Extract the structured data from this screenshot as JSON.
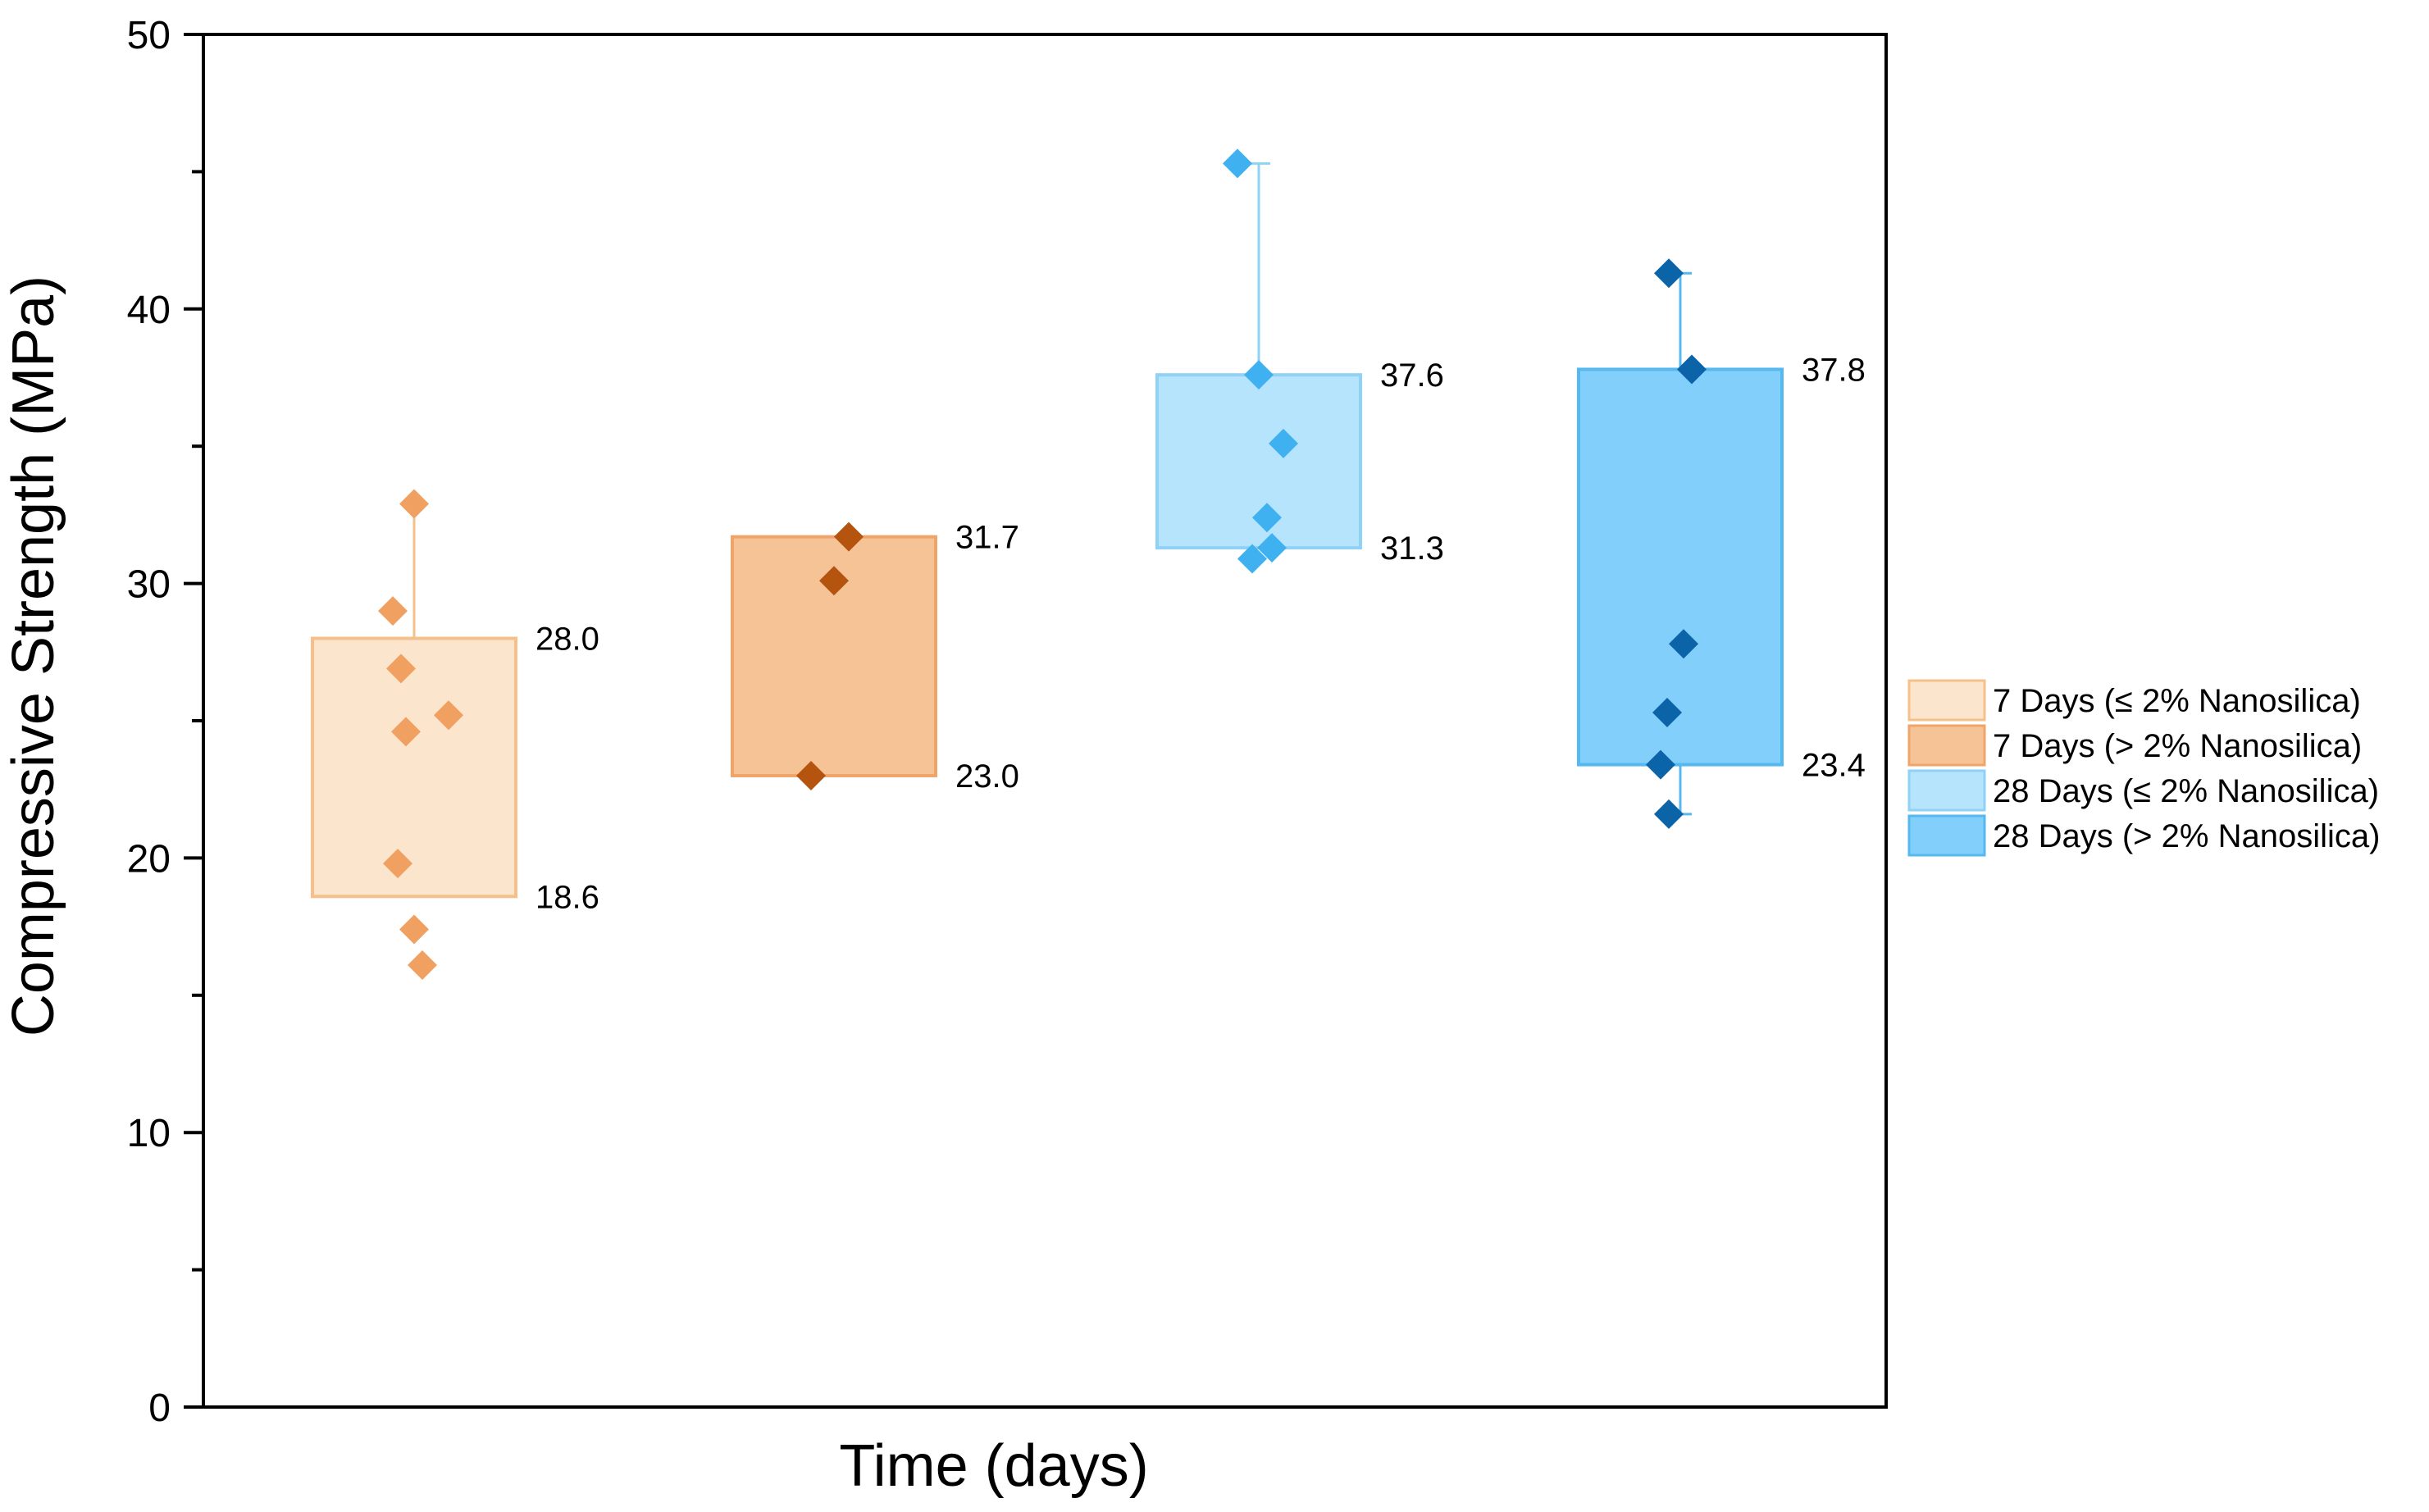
{
  "chart_data": {
    "type": "box",
    "title": "",
    "xlabel": "Time (days)",
    "ylabel": "Compressive Strength (MPa)",
    "ylim": [
      0,
      50
    ],
    "yticks": [
      0,
      10,
      20,
      30,
      40,
      50
    ],
    "grid": false,
    "legend_position": "right",
    "series": [
      {
        "name": "7 Days (≤ 2% Nanosilica)",
        "fill": "#fce5cd",
        "stroke": "#f6c08a",
        "point_color": "#f0a060",
        "box_low": 18.6,
        "box_high": 28.0,
        "box_low_label": "18.6",
        "box_high_label": "28.0",
        "whisker_low": null,
        "whisker_high": 32.9,
        "points": [
          32.9,
          29.0,
          26.9,
          24.6,
          25.2,
          19.8,
          17.4,
          16.1
        ]
      },
      {
        "name": "7 Days (> 2% Nanosilica)",
        "fill": "#f6c397",
        "stroke": "#efa46a",
        "point_color": "#b5540f",
        "box_low": 23.0,
        "box_high": 31.7,
        "box_low_label": "23.0",
        "box_high_label": "31.7",
        "whisker_low": null,
        "whisker_high": null,
        "points": [
          31.7,
          30.1,
          23.0
        ]
      },
      {
        "name": "28 Days (≤ 2% Nanosilica)",
        "fill": "#b6e4fc",
        "stroke": "#8fd2f5",
        "point_color": "#3fb1f0",
        "box_low": 31.3,
        "box_high": 37.6,
        "box_low_label": "31.3",
        "box_high_label": "37.6",
        "whisker_low": null,
        "whisker_high": 45.3,
        "points": [
          45.3,
          37.6,
          35.1,
          32.4,
          31.3,
          30.9
        ]
      },
      {
        "name": "28 Days (> 2% Nanosilica)",
        "fill": "#82cffc",
        "stroke": "#55b8ef",
        "point_color": "#0b63a8",
        "box_low": 23.4,
        "box_high": 37.8,
        "box_low_label": "23.4",
        "box_high_label": "37.8",
        "whisker_low": 21.6,
        "whisker_high": 41.3,
        "points": [
          41.3,
          37.8,
          27.8,
          25.3,
          23.4,
          21.6
        ]
      }
    ]
  }
}
